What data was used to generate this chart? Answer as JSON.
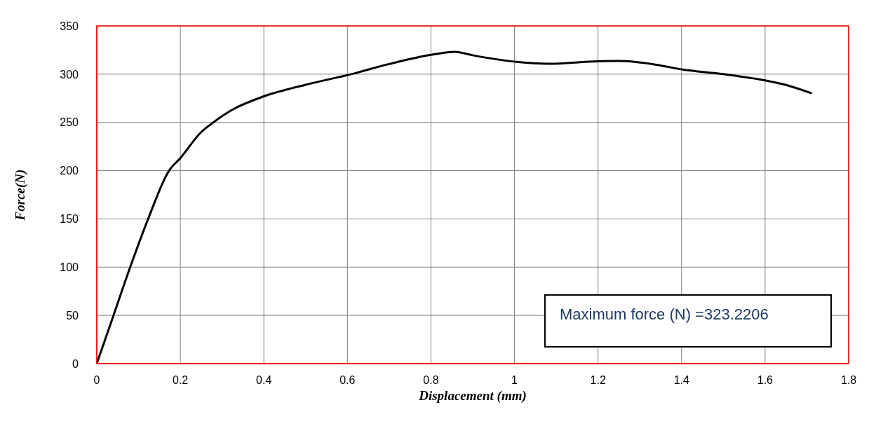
{
  "chart_data": {
    "type": "line",
    "xlabel": "Displacement (mm)",
    "ylabel": "Force(N)",
    "annotations": [
      "Maximum force (N) =323.2206"
    ],
    "x": [
      0,
      0.04,
      0.08,
      0.123,
      0.173,
      0.2,
      0.25,
      0.279,
      0.324,
      0.4,
      0.5,
      0.609,
      0.7,
      0.8,
      0.857,
      0.9,
      1.0,
      1.08,
      1.2,
      1.25,
      1.33,
      1.4,
      1.5,
      1.6,
      1.66,
      1.71
    ],
    "series": [
      {
        "color": "#000000",
        "values": [
          0,
          50,
          100,
          150,
          200,
          213,
          240,
          250,
          263,
          277,
          289,
          300,
          310.5,
          320,
          323.2,
          319.6,
          313,
          310.8,
          313.4,
          313.7,
          310.5,
          305,
          300,
          293.5,
          287.6,
          280.4
        ]
      }
    ],
    "xlim": [
      0,
      1.8
    ],
    "xticks": [
      0,
      0.2,
      0.4,
      0.6,
      0.8,
      1,
      1.2,
      1.4,
      1.6,
      1.8
    ],
    "ylim": [
      0,
      350
    ],
    "yticks": [
      0,
      50,
      100,
      150,
      200,
      250,
      300,
      350
    ],
    "grid": true,
    "legend": false,
    "marker": "none",
    "line_style": "solid"
  }
}
